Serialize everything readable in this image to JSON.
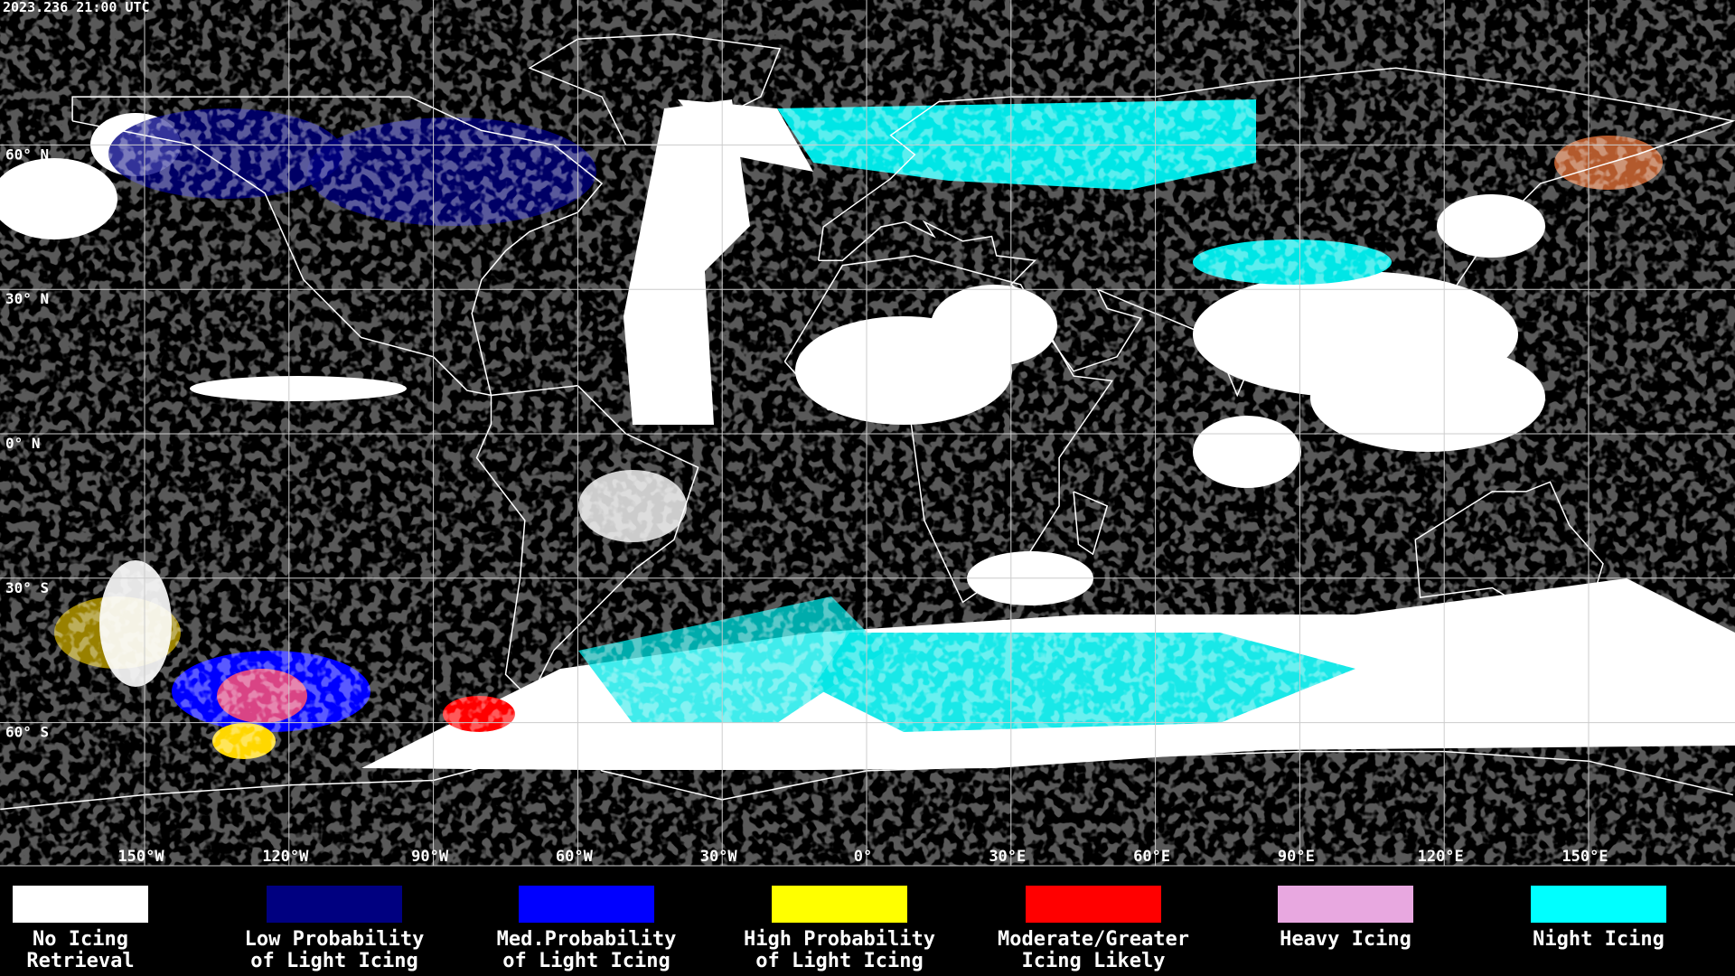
{
  "header": {
    "timestamp": "2023.236 21:00 UTC"
  },
  "map": {
    "latitude_labels": [
      {
        "value": 60,
        "label": "60° N"
      },
      {
        "value": 30,
        "label": "30° N"
      },
      {
        "value": 0,
        "label": "0° N"
      },
      {
        "value": -30,
        "label": "30° S"
      },
      {
        "value": -60,
        "label": "60° S"
      }
    ],
    "longitude_labels": [
      {
        "value": -150,
        "label": "150°W"
      },
      {
        "value": -120,
        "label": "120°W"
      },
      {
        "value": -90,
        "label": "90°W"
      },
      {
        "value": -60,
        "label": "60°W"
      },
      {
        "value": -30,
        "label": "30°W"
      },
      {
        "value": 0,
        "label": "0°"
      },
      {
        "value": 30,
        "label": "30°E"
      },
      {
        "value": 60,
        "label": "60°E"
      },
      {
        "value": 90,
        "label": "90°E"
      },
      {
        "value": 120,
        "label": "120°E"
      },
      {
        "value": 150,
        "label": "150°E"
      }
    ]
  },
  "legend": [
    {
      "lines": [
        "No Icing",
        "Retrieval"
      ],
      "color": "#ffffff"
    },
    {
      "lines": [
        "Low Probability",
        "of Light Icing"
      ],
      "color": "#000080"
    },
    {
      "lines": [
        "Med.Probability",
        "of Light Icing"
      ],
      "color": "#0000ff"
    },
    {
      "lines": [
        "High Probability",
        "of Light Icing"
      ],
      "color": "#ffff00"
    },
    {
      "lines": [
        "Moderate/Greater",
        "Icing Likely"
      ],
      "color": "#ff0000"
    },
    {
      "lines": [
        "Heavy Icing"
      ],
      "color": "#e8a8e0"
    },
    {
      "lines": [
        "Night Icing"
      ],
      "color": "#00ffff"
    }
  ]
}
